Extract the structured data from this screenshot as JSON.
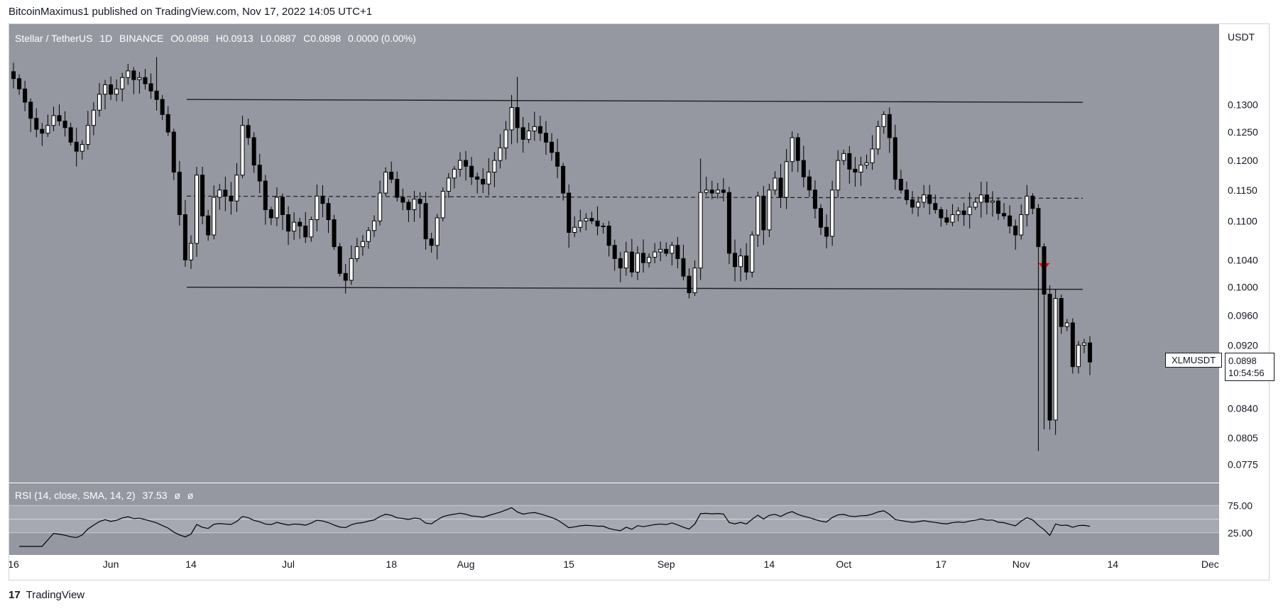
{
  "header": {
    "publish_line": "BitcoinMaximus1 published on TradingView.com, Nov 17, 2022 14:05 UTC+1"
  },
  "legend": {
    "symbol": "Stellar / TetherUS",
    "interval": "1D",
    "exchange": "BINANCE",
    "open": "O0.0898",
    "high": "H0.0913",
    "low": "L0.0887",
    "close": "C0.0898",
    "change": "0.0000 (0.00%)"
  },
  "rsi": {
    "label": "RSI (14, close, SMA, 14, 2)",
    "value": "37.53",
    "extra1": "ø",
    "extra2": "ø",
    "levels": [
      25,
      75
    ],
    "level_labels": [
      "75.00",
      "25.00"
    ]
  },
  "price_axis": {
    "unit": "USDT",
    "ticks": [
      0.13,
      0.125,
      0.12,
      0.115,
      0.11,
      0.104,
      0.1,
      0.096,
      0.092,
      0.084,
      0.0805,
      0.0775
    ],
    "tick_labels": [
      "0.1300",
      "0.1250",
      "0.1200",
      "0.1150",
      "0.1100",
      "0.1040",
      "0.1000",
      "0.0960",
      "0.0920",
      "0.0840",
      "0.0805",
      "0.0775"
    ]
  },
  "last_price": {
    "symbol": "XLMUSDT",
    "value": "0.0898",
    "countdown": "10:54:56"
  },
  "time_axis": {
    "labels": [
      "16",
      "Jun",
      "14",
      "Jul",
      "18",
      "Aug",
      "15",
      "Sep",
      "14",
      "Oct",
      "17",
      "Nov",
      "14",
      "Dec"
    ]
  },
  "footer": {
    "brand": "TradingView",
    "logo_glyph": "17"
  },
  "colors": {
    "background": "#9598a1",
    "rsi_band": "#a6a9b1",
    "up_candle": "#ffffff",
    "down_candle": "#000000",
    "channel_line": "#1e1e1e",
    "marker": "#ff0000"
  },
  "chart_data": {
    "type": "candlestick",
    "symbol": "XLMUSDT",
    "timeframe": "1D",
    "ylim": [
      0.0755,
      0.146
    ],
    "scale": "log",
    "annotations": {
      "channel_resistance": 0.131,
      "channel_support": 0.1,
      "channel_mid": 0.114,
      "breakdown_marker_price": 0.103
    },
    "closes": [
      0.135,
      0.133,
      0.1305,
      0.1275,
      0.1255,
      0.1248,
      0.1262,
      0.128,
      0.127,
      0.1258,
      0.1232,
      0.1216,
      0.1228,
      0.1262,
      0.129,
      0.132,
      0.1338,
      0.132,
      0.133,
      0.1352,
      0.1365,
      0.1348,
      0.1352,
      0.134,
      0.1326,
      0.131,
      0.1282,
      0.125,
      0.118,
      0.111,
      0.104,
      0.1065,
      0.1175,
      0.1108,
      0.1078,
      0.1138,
      0.115,
      0.114,
      0.1132,
      0.1175,
      0.1262,
      0.124,
      0.1192,
      0.1165,
      0.1118,
      0.1105,
      0.1138,
      0.111,
      0.1084,
      0.1098,
      0.1092,
      0.1075,
      0.1102,
      0.114,
      0.1128,
      0.1102,
      0.106,
      0.102,
      0.101,
      0.1042,
      0.106,
      0.1068,
      0.1085,
      0.11,
      0.1145,
      0.118,
      0.1168,
      0.1138,
      0.113,
      0.1118,
      0.1135,
      0.1128,
      0.1072,
      0.1062,
      0.1105,
      0.1148,
      0.117,
      0.1185,
      0.12,
      0.119,
      0.1172,
      0.1168,
      0.116,
      0.118,
      0.12,
      0.1222,
      0.1254,
      0.1295,
      0.1258,
      0.1237,
      0.1252,
      0.126,
      0.1248,
      0.1232,
      0.1214,
      0.119,
      0.1145,
      0.1082,
      0.109,
      0.11,
      0.1104,
      0.11,
      0.1092,
      0.1092,
      0.1062,
      0.1042,
      0.1028,
      0.1052,
      0.1022,
      0.105,
      0.1036,
      0.1044,
      0.1052,
      0.1056,
      0.105,
      0.1062,
      0.1042,
      0.1016,
      0.0992,
      0.1028,
      0.1146,
      0.115,
      0.1145,
      0.115,
      0.1146,
      0.105,
      0.103,
      0.1046,
      0.1022,
      0.1078,
      0.114,
      0.1086,
      0.115,
      0.117,
      0.1138,
      0.1198,
      0.124,
      0.12,
      0.1172,
      0.115,
      0.112,
      0.109,
      0.1076,
      0.115,
      0.12,
      0.1212,
      0.1185,
      0.118,
      0.1192,
      0.1196,
      0.122,
      0.126,
      0.1282,
      0.124,
      0.1168,
      0.115,
      0.1134,
      0.1122,
      0.113,
      0.1142,
      0.1128,
      0.1118,
      0.1105,
      0.1098,
      0.111,
      0.1116,
      0.111,
      0.1122,
      0.113,
      0.1142,
      0.113,
      0.1132,
      0.1112,
      0.1108,
      0.1092,
      0.1078,
      0.111,
      0.114,
      0.112,
      0.106,
      0.099,
      0.0826,
      0.0984,
      0.0945,
      0.095,
      0.0892,
      0.092,
      0.0923,
      0.0898
    ]
  }
}
